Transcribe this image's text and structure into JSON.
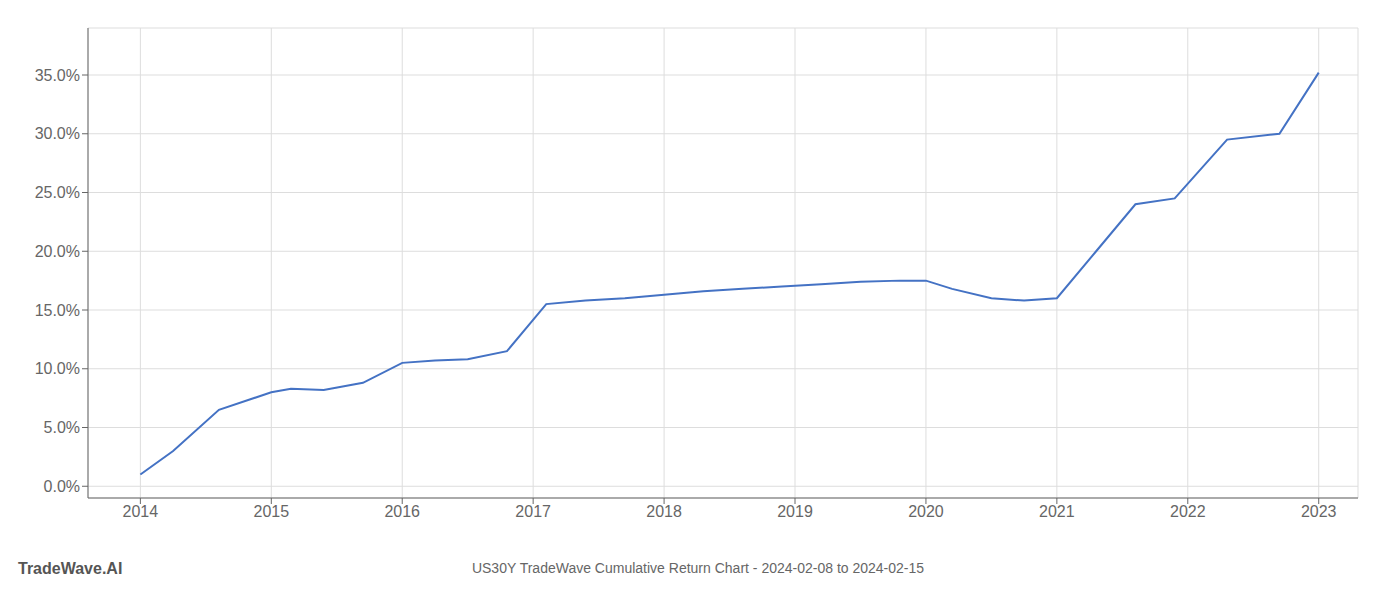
{
  "chart_data": {
    "type": "line",
    "title": "US30Y TradeWave Cumulative Return Chart - 2024-02-08 to 2024-02-15",
    "annotations": [
      "TradeWave.AI"
    ],
    "x": [
      2014.0,
      2014.25,
      2014.6,
      2015.0,
      2015.15,
      2015.4,
      2015.7,
      2016.0,
      2016.25,
      2016.5,
      2016.8,
      2017.1,
      2017.4,
      2017.7,
      2018.0,
      2018.3,
      2018.6,
      2018.9,
      2019.2,
      2019.5,
      2019.8,
      2020.0,
      2020.2,
      2020.5,
      2020.75,
      2021.0,
      2021.3,
      2021.6,
      2021.9,
      2022.3,
      2022.7,
      2023.0
    ],
    "values": [
      0.01,
      0.03,
      0.065,
      0.08,
      0.083,
      0.082,
      0.088,
      0.105,
      0.107,
      0.108,
      0.115,
      0.155,
      0.158,
      0.16,
      0.163,
      0.166,
      0.168,
      0.17,
      0.172,
      0.174,
      0.175,
      0.175,
      0.168,
      0.16,
      0.158,
      0.16,
      0.2,
      0.24,
      0.245,
      0.295,
      0.3,
      0.352
    ],
    "color": "#4472c4",
    "xlim": [
      2013.6,
      2023.3
    ],
    "xticks": [
      2014,
      2015,
      2016,
      2017,
      2018,
      2019,
      2020,
      2021,
      2022,
      2023
    ],
    "ylim": [
      -0.01,
      0.39
    ],
    "yticks": [
      {
        "value": 0.0,
        "label": "0.0%"
      },
      {
        "value": 0.05,
        "label": "5.0%"
      },
      {
        "value": 0.1,
        "label": "10.0%"
      },
      {
        "value": 0.15,
        "label": "15.0%"
      },
      {
        "value": 0.2,
        "label": "20.0%"
      },
      {
        "value": 0.25,
        "label": "25.0%"
      },
      {
        "value": 0.3,
        "label": "30.0%"
      },
      {
        "value": 0.35,
        "label": "35.0%"
      }
    ],
    "grid": true
  }
}
